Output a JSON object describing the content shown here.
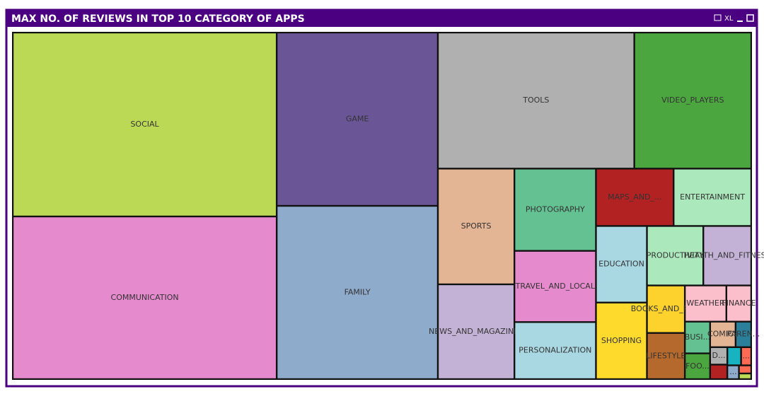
{
  "window": {
    "toolbar_text": "XL"
  },
  "chart_data": {
    "type": "treemap",
    "title": "MAX NO. OF REVIEWS IN TOP 10 CATEGORY OF APPS",
    "categories": [
      "SOCIAL",
      "COMMUNICATION",
      "GAME",
      "FAMILY",
      "TOOLS",
      "VIDEO_PLAYERS",
      "SPORTS",
      "NEWS_AND_MAGAZINES",
      "PHOTOGRAPHY",
      "TRAVEL_AND_LOCAL",
      "PERSONALIZATION",
      "MAPS_AND_...",
      "ENTERTAINMENT",
      "EDUCATION",
      "SHOPPING",
      "PRODUCTIVITY",
      "HEALTH_AND_FITNESS",
      "BOOKS_AND_RE...",
      "LIFESTYLE",
      "WEATHER",
      "FINANCE",
      "BUSI...",
      "FOO...",
      "COMICS",
      "PAREN...",
      "D...",
      null,
      null,
      "...",
      "...",
      null,
      null
    ],
    "values": [
      970,
      858,
      558,
      558,
      534,
      318,
      177,
      145,
      134,
      116,
      93,
      89,
      89,
      78,
      78,
      67,
      57,
      36,
      35,
      30,
      18,
      16,
      13,
      13,
      8,
      6,
      5,
      5,
      3.7,
      3.2,
      2,
      1.4
    ],
    "colors": [
      "#bcd955",
      "#e68ace",
      "#6a5697",
      "#8eabcb",
      "#b0b0b0",
      "#4ba640",
      "#e3b594",
      "#c3b2d6",
      "#64c192",
      "#e68ace",
      "#a9d8e3",
      "#b22222",
      "#abe8bb",
      "#a9d8e3",
      "#fdda2c",
      "#abe8bb",
      "#c3b2d6",
      "#fdd22c",
      "#b5692c",
      "#fbbfcb",
      "#fbbfcb",
      "#64c192",
      "#4ba640",
      "#e3b594",
      "#2a7f9a",
      "#b0b0b0",
      "#b22222",
      "#18b3c0",
      "#ff6a55",
      "#8eabcb",
      "#ff6a55",
      "#bcd955"
    ]
  }
}
